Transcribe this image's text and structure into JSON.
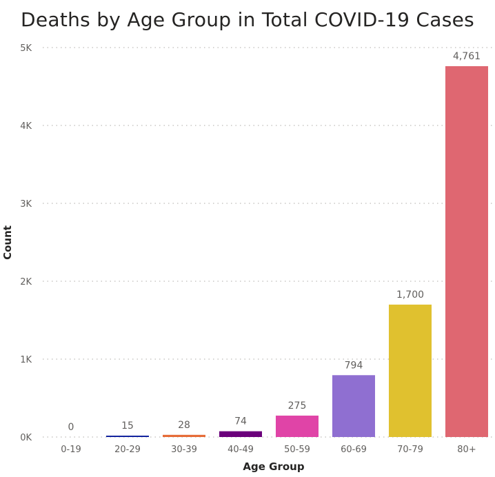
{
  "chart_data": {
    "type": "bar",
    "title": "Deaths by Age Group in Total COVID-19 Cases",
    "xlabel": "Age Group",
    "ylabel": "Count",
    "categories": [
      "0-19",
      "20-29",
      "30-39",
      "40-49",
      "50-59",
      "60-69",
      "70-79",
      "80+"
    ],
    "values": [
      0,
      15,
      28,
      74,
      275,
      794,
      1700,
      4761
    ],
    "data_labels": [
      "0",
      "15",
      "28",
      "74",
      "275",
      "794",
      "1,700",
      "4,761"
    ],
    "colors": [
      "#118dff",
      "#12239e",
      "#e66c37",
      "#6b007b",
      "#e044a7",
      "#8f6fd1",
      "#e0c12f",
      "#df6771"
    ],
    "ylim": [
      0,
      5000
    ],
    "yticks": [
      0,
      1000,
      2000,
      3000,
      4000,
      5000
    ],
    "ytick_labels": [
      "0K",
      "1K",
      "2K",
      "3K",
      "4K",
      "5K"
    ],
    "grid": true,
    "grid_color": "#c8c6c4",
    "legend": "none"
  }
}
